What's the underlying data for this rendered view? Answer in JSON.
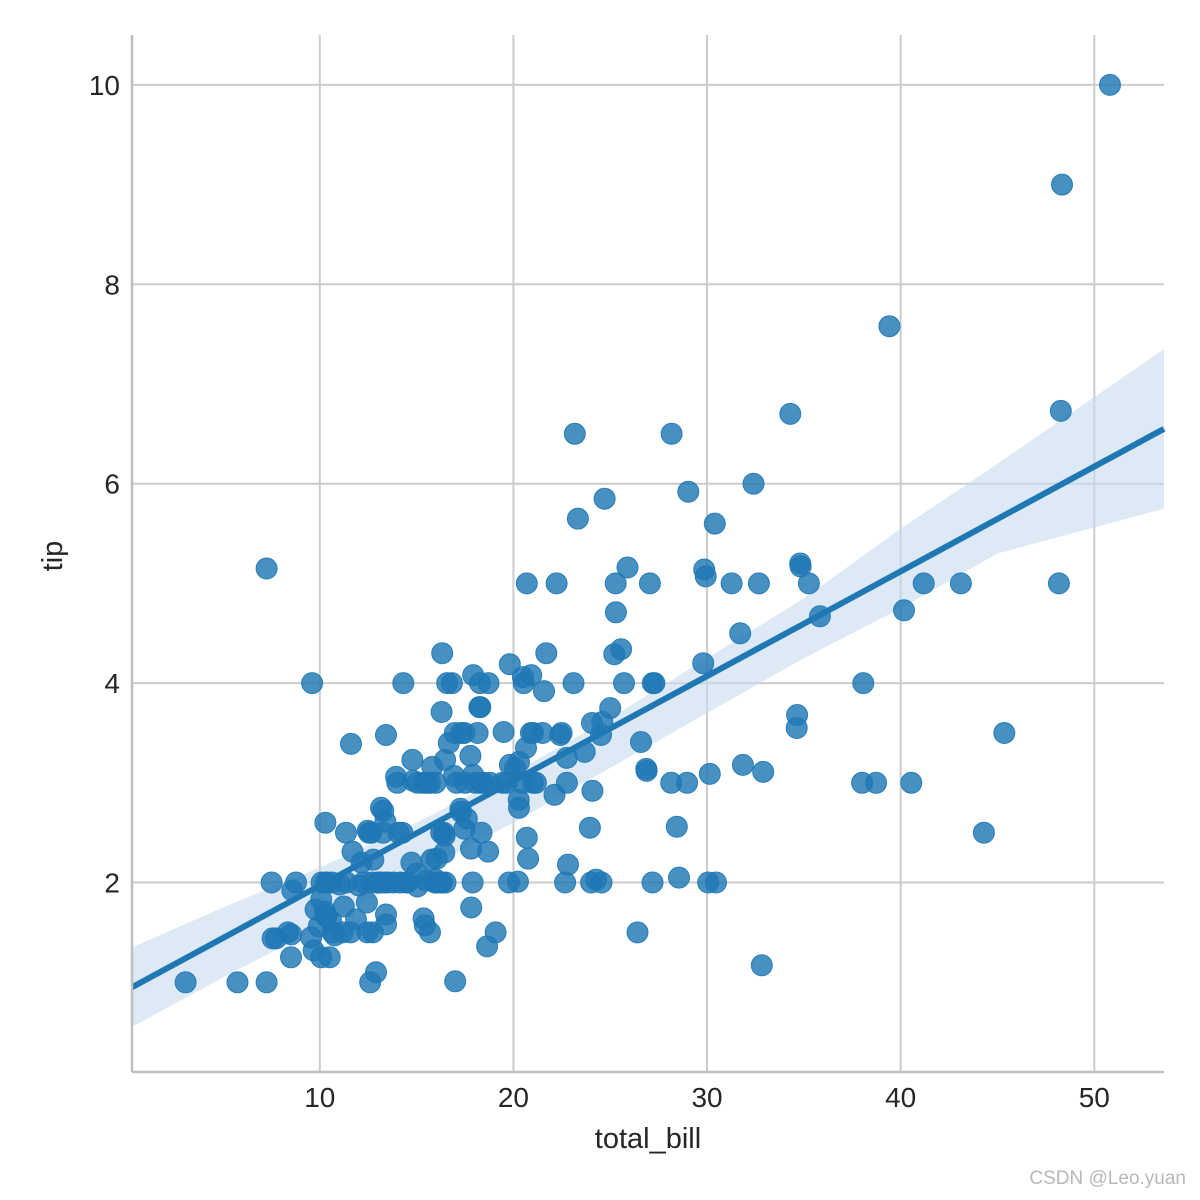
{
  "watermark": "CSDN @Leo.yuan",
  "chart_data": {
    "type": "scatter",
    "xlabel": "total_bill",
    "ylabel": "tip",
    "xlim": [
      0.3,
      53.6
    ],
    "ylim": [
      0.1,
      10.5
    ],
    "xticks": [
      10,
      20,
      30,
      40,
      50
    ],
    "yticks": [
      2,
      4,
      6,
      8,
      10
    ],
    "grid": true,
    "colors": {
      "point": "#1f77b4",
      "line": "#1f77b4",
      "band": "#c6dbef",
      "grid": "#cccccc",
      "spine": "#bfbfbf"
    },
    "regression": {
      "x": [
        0.3,
        53.6
      ],
      "y": [
        0.95,
        6.55
      ]
    },
    "confidence_band": {
      "x": [
        0.3,
        5,
        10,
        15,
        20,
        25,
        30,
        35,
        40,
        45,
        53.6
      ],
      "upper": [
        1.35,
        1.75,
        2.15,
        2.6,
        3.1,
        3.65,
        4.25,
        4.85,
        5.55,
        6.2,
        7.35
      ],
      "lower": [
        0.55,
        1.05,
        1.55,
        2.1,
        2.6,
        3.15,
        3.7,
        4.25,
        4.75,
        5.3,
        5.75
      ]
    },
    "points": [
      [
        3.07,
        1.0
      ],
      [
        5.75,
        1.0
      ],
      [
        7.25,
        1.0
      ],
      [
        7.25,
        5.15
      ],
      [
        7.51,
        2.0
      ],
      [
        7.56,
        1.44
      ],
      [
        7.74,
        1.44
      ],
      [
        8.35,
        1.5
      ],
      [
        8.51,
        1.25
      ],
      [
        8.52,
        1.48
      ],
      [
        8.58,
        1.92
      ],
      [
        8.77,
        2.0
      ],
      [
        9.55,
        1.45
      ],
      [
        9.6,
        4.0
      ],
      [
        9.68,
        1.32
      ],
      [
        9.78,
        1.73
      ],
      [
        9.94,
        1.56
      ],
      [
        10.07,
        1.25
      ],
      [
        10.07,
        1.83
      ],
      [
        10.09,
        2.0
      ],
      [
        10.27,
        1.71
      ],
      [
        10.29,
        2.6
      ],
      [
        10.33,
        2.0
      ],
      [
        10.33,
        1.67
      ],
      [
        10.34,
        1.66
      ],
      [
        10.34,
        2.0
      ],
      [
        10.51,
        1.25
      ],
      [
        10.59,
        1.61
      ],
      [
        10.63,
        2.0
      ],
      [
        10.65,
        1.5
      ],
      [
        10.77,
        1.47
      ],
      [
        11.02,
        1.98
      ],
      [
        11.17,
        1.5
      ],
      [
        11.24,
        1.76
      ],
      [
        11.35,
        2.5
      ],
      [
        11.38,
        2.0
      ],
      [
        11.59,
        1.5
      ],
      [
        11.61,
        3.39
      ],
      [
        11.69,
        2.31
      ],
      [
        11.87,
        1.63
      ],
      [
        12.02,
        1.97
      ],
      [
        12.16,
        2.2
      ],
      [
        12.26,
        2.0
      ],
      [
        12.43,
        1.8
      ],
      [
        12.46,
        1.5
      ],
      [
        12.48,
        2.52
      ],
      [
        12.54,
        2.5
      ],
      [
        12.6,
        1.0
      ],
      [
        12.66,
        2.5
      ],
      [
        12.69,
        2.0
      ],
      [
        12.74,
        1.5
      ],
      [
        12.76,
        2.23
      ],
      [
        12.9,
        1.1
      ],
      [
        13.0,
        2.0
      ],
      [
        13.03,
        2.0
      ],
      [
        13.13,
        2.0
      ],
      [
        13.16,
        2.75
      ],
      [
        13.27,
        2.5
      ],
      [
        13.28,
        2.72
      ],
      [
        13.37,
        2.0
      ],
      [
        13.39,
        2.61
      ],
      [
        13.42,
        1.58
      ],
      [
        13.42,
        3.48
      ],
      [
        13.42,
        1.68
      ],
      [
        13.51,
        2.0
      ],
      [
        13.81,
        2.0
      ],
      [
        13.94,
        3.06
      ],
      [
        14.0,
        3.0
      ],
      [
        14.07,
        2.5
      ],
      [
        14.15,
        2.0
      ],
      [
        14.26,
        2.5
      ],
      [
        14.31,
        4.0
      ],
      [
        14.48,
        2.0
      ],
      [
        14.52,
        2.0
      ],
      [
        14.73,
        2.2
      ],
      [
        14.78,
        3.23
      ],
      [
        14.83,
        3.02
      ],
      [
        15.01,
        2.09
      ],
      [
        15.04,
        1.96
      ],
      [
        15.06,
        3.0
      ],
      [
        15.36,
        1.64
      ],
      [
        15.38,
        3.0
      ],
      [
        15.42,
        1.57
      ],
      [
        15.48,
        2.02
      ],
      [
        15.53,
        3.0
      ],
      [
        15.69,
        1.5
      ],
      [
        15.69,
        3.0
      ],
      [
        15.77,
        2.23
      ],
      [
        15.81,
        3.16
      ],
      [
        15.95,
        2.0
      ],
      [
        15.98,
        2.03
      ],
      [
        15.98,
        3.0
      ],
      [
        16.0,
        2.0
      ],
      [
        16.04,
        2.24
      ],
      [
        16.21,
        2.0
      ],
      [
        16.27,
        2.5
      ],
      [
        16.29,
        3.71
      ],
      [
        16.31,
        2.0
      ],
      [
        16.32,
        4.3
      ],
      [
        16.4,
        2.5
      ],
      [
        16.43,
        2.3
      ],
      [
        16.45,
        2.47
      ],
      [
        16.47,
        3.23
      ],
      [
        16.49,
        2.0
      ],
      [
        16.58,
        4.0
      ],
      [
        16.66,
        3.4
      ],
      [
        16.82,
        4.0
      ],
      [
        16.93,
        3.07
      ],
      [
        16.97,
        3.5
      ],
      [
        16.99,
        1.01
      ],
      [
        17.07,
        3.0
      ],
      [
        17.26,
        2.74
      ],
      [
        17.29,
        2.71
      ],
      [
        17.31,
        3.5
      ],
      [
        17.46,
        2.54
      ],
      [
        17.47,
        3.5
      ],
      [
        17.51,
        3.0
      ],
      [
        17.59,
        2.64
      ],
      [
        17.78,
        3.27
      ],
      [
        17.81,
        2.34
      ],
      [
        17.82,
        1.75
      ],
      [
        17.89,
        2.0
      ],
      [
        17.92,
        4.08
      ],
      [
        17.92,
        3.08
      ],
      [
        18.04,
        3.0
      ],
      [
        18.15,
        3.5
      ],
      [
        18.24,
        3.76
      ],
      [
        18.28,
        4.0
      ],
      [
        18.29,
        3.76
      ],
      [
        18.29,
        3.0
      ],
      [
        18.35,
        2.5
      ],
      [
        18.43,
        3.0
      ],
      [
        18.64,
        1.36
      ],
      [
        18.69,
        2.31
      ],
      [
        18.71,
        4.0
      ],
      [
        18.78,
        3.0
      ],
      [
        19.08,
        1.5
      ],
      [
        19.44,
        3.0
      ],
      [
        19.49,
        3.51
      ],
      [
        19.65,
        3.0
      ],
      [
        19.77,
        2.0
      ],
      [
        19.81,
        4.19
      ],
      [
        19.82,
        3.18
      ],
      [
        20.08,
        3.15
      ],
      [
        20.23,
        2.01
      ],
      [
        20.27,
        2.83
      ],
      [
        20.29,
        2.75
      ],
      [
        20.29,
        3.21
      ],
      [
        20.45,
        3.0
      ],
      [
        20.49,
        4.06
      ],
      [
        20.53,
        4.0
      ],
      [
        20.65,
        3.35
      ],
      [
        20.69,
        5.0
      ],
      [
        20.69,
        2.45
      ],
      [
        20.76,
        2.24
      ],
      [
        20.9,
        3.5
      ],
      [
        20.92,
        4.08
      ],
      [
        21.01,
        3.5
      ],
      [
        21.01,
        3.0
      ],
      [
        21.16,
        3.0
      ],
      [
        21.5,
        3.5
      ],
      [
        21.58,
        3.92
      ],
      [
        21.7,
        4.3
      ],
      [
        22.12,
        2.88
      ],
      [
        22.23,
        5.0
      ],
      [
        22.42,
        3.48
      ],
      [
        22.49,
        3.5
      ],
      [
        22.67,
        2.0
      ],
      [
        22.75,
        3.25
      ],
      [
        22.76,
        3.0
      ],
      [
        22.82,
        2.18
      ],
      [
        23.1,
        4.0
      ],
      [
        23.17,
        6.5
      ],
      [
        23.33,
        5.65
      ],
      [
        23.68,
        3.31
      ],
      [
        23.95,
        2.55
      ],
      [
        24.01,
        2.0
      ],
      [
        24.06,
        3.6
      ],
      [
        24.08,
        2.92
      ],
      [
        24.27,
        2.03
      ],
      [
        24.52,
        3.48
      ],
      [
        24.55,
        2.0
      ],
      [
        24.59,
        3.61
      ],
      [
        24.71,
        5.85
      ],
      [
        25.0,
        3.75
      ],
      [
        25.21,
        4.29
      ],
      [
        25.28,
        5.0
      ],
      [
        25.29,
        4.71
      ],
      [
        25.56,
        4.34
      ],
      [
        25.71,
        4.0
      ],
      [
        25.89,
        5.16
      ],
      [
        26.41,
        1.5
      ],
      [
        26.59,
        3.41
      ],
      [
        26.88,
        3.12
      ],
      [
        26.86,
        3.14
      ],
      [
        27.05,
        5.0
      ],
      [
        27.18,
        2.0
      ],
      [
        27.2,
        4.0
      ],
      [
        27.28,
        4.0
      ],
      [
        28.15,
        3.0
      ],
      [
        28.17,
        6.5
      ],
      [
        28.44,
        2.56
      ],
      [
        28.55,
        2.05
      ],
      [
        28.97,
        3.0
      ],
      [
        29.03,
        5.92
      ],
      [
        29.8,
        4.2
      ],
      [
        29.85,
        5.14
      ],
      [
        29.93,
        5.07
      ],
      [
        30.06,
        2.0
      ],
      [
        30.14,
        3.09
      ],
      [
        30.4,
        5.6
      ],
      [
        30.46,
        2.0
      ],
      [
        31.27,
        5.0
      ],
      [
        31.71,
        4.5
      ],
      [
        31.85,
        3.18
      ],
      [
        32.4,
        6.0
      ],
      [
        32.68,
        5.0
      ],
      [
        32.83,
        1.17
      ],
      [
        32.9,
        3.11
      ],
      [
        34.3,
        6.7
      ],
      [
        34.63,
        3.55
      ],
      [
        34.65,
        3.68
      ],
      [
        34.81,
        5.2
      ],
      [
        34.83,
        5.17
      ],
      [
        35.26,
        5.0
      ],
      [
        35.83,
        4.67
      ],
      [
        38.01,
        3.0
      ],
      [
        38.07,
        4.0
      ],
      [
        38.73,
        3.0
      ],
      [
        39.42,
        7.58
      ],
      [
        40.17,
        4.73
      ],
      [
        40.55,
        3.0
      ],
      [
        41.19,
        5.0
      ],
      [
        43.11,
        5.0
      ],
      [
        44.3,
        2.5
      ],
      [
        45.35,
        3.5
      ],
      [
        48.17,
        5.0
      ],
      [
        48.27,
        6.73
      ],
      [
        48.33,
        9.0
      ],
      [
        50.81,
        10.0
      ]
    ]
  }
}
